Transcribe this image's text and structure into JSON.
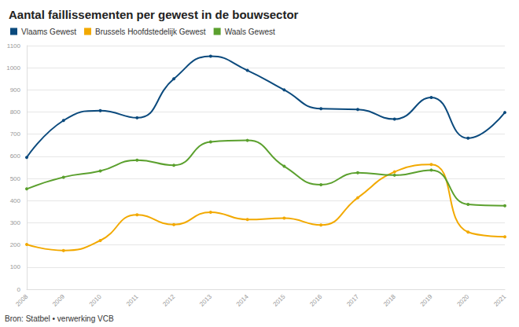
{
  "chart_data": {
    "type": "line",
    "title": "Aantal faillissementen per gewest in de bouwsector",
    "source": "Bron: Statbel • verwerking VCB",
    "categories": [
      "2008",
      "2009",
      "2010",
      "2011",
      "2012",
      "2013",
      "2014",
      "2015",
      "2016",
      "2017",
      "2018",
      "2019",
      "2020",
      "2021"
    ],
    "series": [
      {
        "name": "Vlaams Gewest",
        "color": "#0b4a7d",
        "values": [
          595,
          762,
          806,
          774,
          950,
          1052,
          988,
          900,
          815,
          812,
          768,
          866,
          682,
          798
        ]
      },
      {
        "name": "Brussels Hoofdstedelijk Gewest",
        "color": "#f2a900",
        "values": [
          202,
          175,
          220,
          336,
          292,
          348,
          315,
          321,
          290,
          413,
          530,
          563,
          258,
          237
        ]
      },
      {
        "name": "Waals Gewest",
        "color": "#5ba02e",
        "values": [
          453,
          506,
          534,
          583,
          560,
          665,
          672,
          555,
          472,
          526,
          515,
          538,
          383,
          377
        ]
      }
    ],
    "ylim": [
      0,
      1100
    ],
    "yticks": [
      0,
      100,
      200,
      300,
      400,
      500,
      600,
      700,
      800,
      900,
      1000,
      1100
    ],
    "grid": true,
    "legend": "top-left",
    "marker": "circle"
  }
}
